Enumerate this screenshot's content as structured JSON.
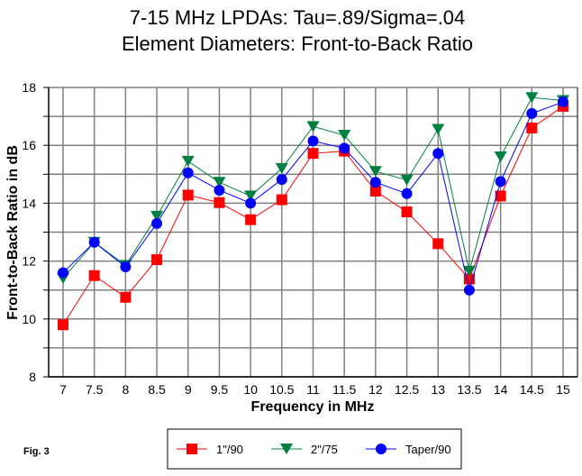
{
  "chart_data": {
    "type": "line",
    "title": [
      "7-15 MHz LPDAs:  Tau=.89/Sigma=.04",
      "Element Diameters: Front-to-Back Ratio"
    ],
    "xlabel": "Frequency in MHz",
    "ylabel": "Front-to-Back Ratio in dB",
    "note": "Fig. 3",
    "x": [
      7,
      7.5,
      8,
      8.5,
      9,
      9.5,
      10,
      10.5,
      11,
      11.5,
      12,
      12.5,
      13,
      13.5,
      14,
      14.5,
      15
    ],
    "x_tick_labels": [
      "7",
      "7.5",
      "8",
      "8.5",
      "9",
      "9.5",
      "10",
      "10.5",
      "11",
      "11.5",
      "12",
      "12.5",
      "13",
      "13.5",
      "14",
      "14.5",
      "15"
    ],
    "ylim": [
      8,
      18
    ],
    "y_ticks": [
      8,
      10,
      12,
      14,
      16,
      18
    ],
    "grid": true,
    "legend_position": "bottom",
    "series": [
      {
        "name": "1\"/90",
        "color": "#ff0000",
        "marker": "square",
        "values": [
          9.8,
          11.5,
          10.75,
          12.05,
          14.28,
          14.02,
          13.43,
          14.12,
          15.72,
          15.8,
          14.42,
          13.7,
          12.6,
          11.38,
          14.25,
          16.6,
          17.35
        ]
      },
      {
        "name": "2\"/75",
        "color": "#008040",
        "marker": "triangle-down",
        "values": [
          11.4,
          12.65,
          11.85,
          13.55,
          15.45,
          14.72,
          14.25,
          15.2,
          16.65,
          16.35,
          15.1,
          14.8,
          16.55,
          11.65,
          15.6,
          17.65,
          17.55
        ]
      },
      {
        "name": "Taper/90",
        "color": "#0000ff",
        "marker": "circle",
        "values": [
          11.6,
          12.65,
          11.8,
          13.3,
          15.05,
          14.45,
          14.0,
          14.82,
          16.15,
          15.9,
          14.72,
          14.33,
          15.72,
          11.0,
          14.75,
          17.1,
          17.5
        ]
      }
    ]
  }
}
